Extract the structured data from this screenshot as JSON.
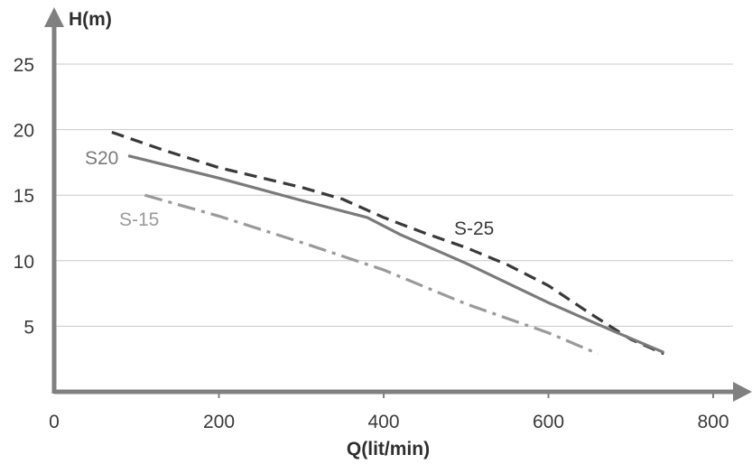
{
  "chart_data": {
    "type": "line",
    "title": "",
    "xlabel": "Q(lit/min)",
    "ylabel": "H(m)",
    "xlim": [
      0,
      800
    ],
    "ylim": [
      0,
      25
    ],
    "x_ticks": [
      0,
      200,
      400,
      600,
      800
    ],
    "y_ticks": [
      5,
      10,
      15,
      20,
      25
    ],
    "grid": "horizontal",
    "series": [
      {
        "name": "S-25",
        "style": "dashed",
        "color": "#3a3a3a",
        "x": [
          70,
          130,
          200,
          300,
          350,
          400,
          450,
          500,
          550,
          600,
          650,
          700,
          740
        ],
        "y": [
          19.8,
          18.5,
          17.1,
          15.6,
          14.7,
          13.3,
          12.1,
          11.0,
          9.7,
          8.1,
          6.0,
          4.0,
          2.9
        ]
      },
      {
        "name": "S20",
        "style": "solid",
        "color": "#7a7a7a",
        "x": [
          90,
          200,
          300,
          380,
          420,
          500,
          600,
          680,
          740
        ],
        "y": [
          18.0,
          16.3,
          14.6,
          13.3,
          12.0,
          9.8,
          6.8,
          4.6,
          3.0
        ]
      },
      {
        "name": "S-15",
        "style": "dash-dot",
        "color": "#9a9a9a",
        "x": [
          110,
          200,
          300,
          400,
          500,
          600,
          660
        ],
        "y": [
          15.0,
          13.4,
          11.4,
          9.3,
          6.7,
          4.5,
          2.9
        ]
      }
    ]
  },
  "colors": {
    "axis": "#808080",
    "grid": "#c9c9c9",
    "text": "#3a3a3a"
  }
}
